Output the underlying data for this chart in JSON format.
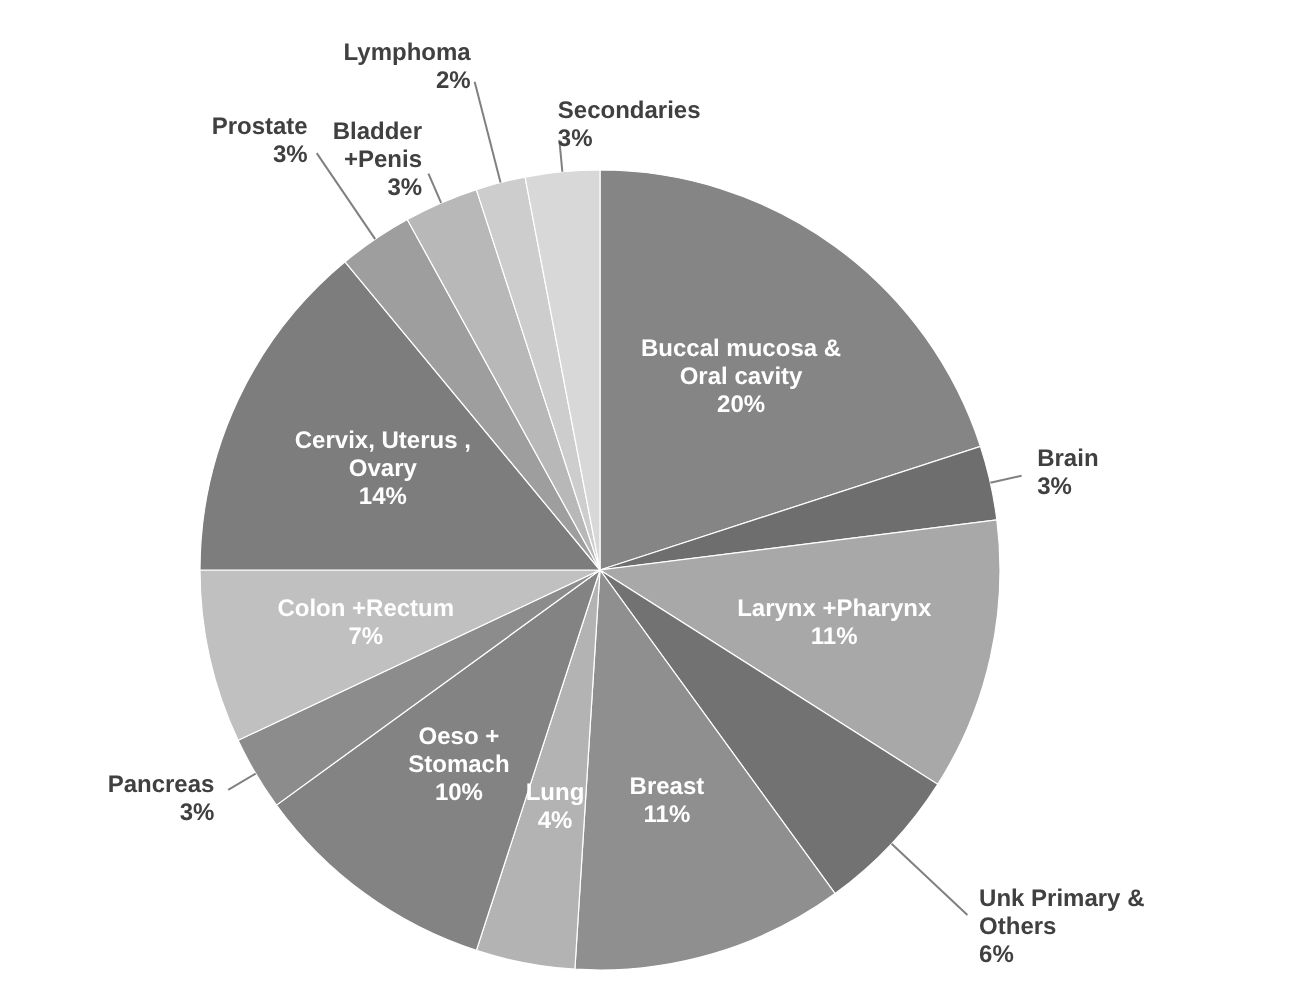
{
  "chart_data": {
    "type": "pie",
    "categories": [
      "Buccal mucosa & Oral cavity",
      "Brain",
      "Larynx +Pharynx",
      "Unk Primary & Others",
      "Breast",
      "Lung",
      "Oeso + Stomach",
      "Pancreas",
      "Colon +Rectum",
      "Cervix, Uterus , Ovary",
      "Prostate",
      "Bladder +Penis",
      "Lymphoma",
      "Secondaries"
    ],
    "values": [
      20,
      3,
      11,
      6,
      11,
      4,
      10,
      3,
      7,
      14,
      3,
      3,
      2,
      3
    ],
    "value_labels": [
      "20%",
      "3%",
      "11%",
      "6%",
      "11%",
      "4%",
      "10%",
      "3%",
      "7%",
      "14%",
      "3%",
      "3%",
      "2%",
      "3%"
    ],
    "colors": [
      "#858585",
      "#6e6e6e",
      "#a8a8a8",
      "#727272",
      "#8f8f8f",
      "#b3b3b3",
      "#838383",
      "#8c8c8c",
      "#c0c0c0",
      "#7d7d7d",
      "#9e9e9e",
      "#b8b8b8",
      "#cdcdcd",
      "#d8d8d8"
    ]
  }
}
